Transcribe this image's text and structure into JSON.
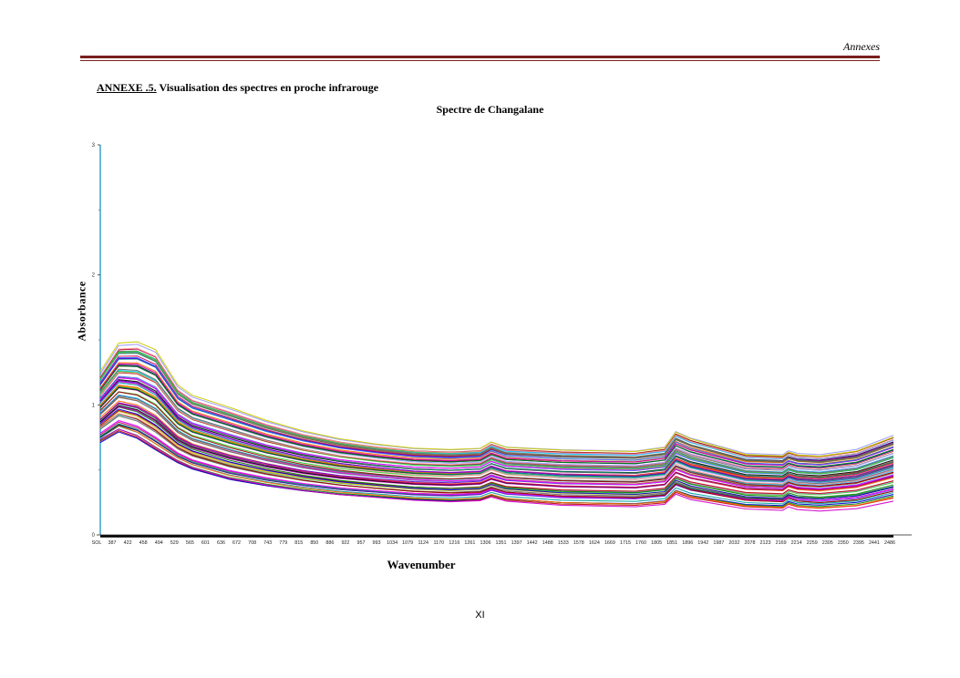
{
  "header": {
    "section": "Annexes"
  },
  "annex": {
    "label": "ANNEXE .5.",
    "title": "Visualisation des spectres en proche infrarouge"
  },
  "page_number": "XI",
  "chart_data": {
    "type": "line",
    "title": "Spectre de  Changalane",
    "xlabel": "Wavenumber",
    "ylabel": "Absorbance",
    "ylim": [
      0,
      3
    ],
    "yticks": [
      "0",
      "1",
      "2",
      "3"
    ],
    "xticks": [
      "SOL",
      "387",
      "422",
      "458",
      "494",
      "529",
      "565",
      "601",
      "636",
      "672",
      "708",
      "743",
      "779",
      "815",
      "850",
      "886",
      "922",
      "957",
      "993",
      "1034",
      "1079",
      "1124",
      "1170",
      "1216",
      "1261",
      "1306",
      "1351",
      "1397",
      "1442",
      "1488",
      "1533",
      "1578",
      "1624",
      "1669",
      "1715",
      "1760",
      "1805",
      "1851",
      "1896",
      "1942",
      "1987",
      "2032",
      "2078",
      "2123",
      "2169",
      "2214",
      "2259",
      "2305",
      "2350",
      "2395",
      "2441",
      "2486"
    ],
    "grid": false,
    "legend": "none",
    "series_count": 80,
    "representative_series": {
      "x": [
        350,
        400,
        450,
        500,
        560,
        600,
        700,
        800,
        900,
        1000,
        1100,
        1200,
        1300,
        1380,
        1410,
        1450,
        1600,
        1800,
        1880,
        1910,
        1950,
        2100,
        2200,
        2215,
        2240,
        2300,
        2400,
        2500
      ],
      "y_high": [
        1.25,
        1.47,
        1.48,
        1.42,
        1.15,
        1.07,
        0.98,
        0.88,
        0.8,
        0.74,
        0.7,
        0.67,
        0.66,
        0.67,
        0.72,
        0.68,
        0.66,
        0.65,
        0.68,
        0.8,
        0.75,
        0.63,
        0.62,
        0.65,
        0.63,
        0.62,
        0.66,
        0.77
      ],
      "y_low": [
        0.72,
        0.8,
        0.75,
        0.66,
        0.56,
        0.51,
        0.43,
        0.38,
        0.34,
        0.31,
        0.29,
        0.27,
        0.26,
        0.27,
        0.3,
        0.27,
        0.24,
        0.23,
        0.25,
        0.33,
        0.29,
        0.22,
        0.21,
        0.24,
        0.22,
        0.21,
        0.23,
        0.29
      ]
    },
    "palette": [
      "#c00000",
      "#0000cc",
      "#008000",
      "#cc00cc",
      "#00a0a0",
      "#ff6600",
      "#000000",
      "#6600cc",
      "#cc0066",
      "#3366ff",
      "#009966",
      "#996633",
      "#ff00ff",
      "#00ccff",
      "#666666",
      "#33cc33",
      "#990000",
      "#ff9999",
      "#9999ff",
      "#cccc00"
    ]
  }
}
